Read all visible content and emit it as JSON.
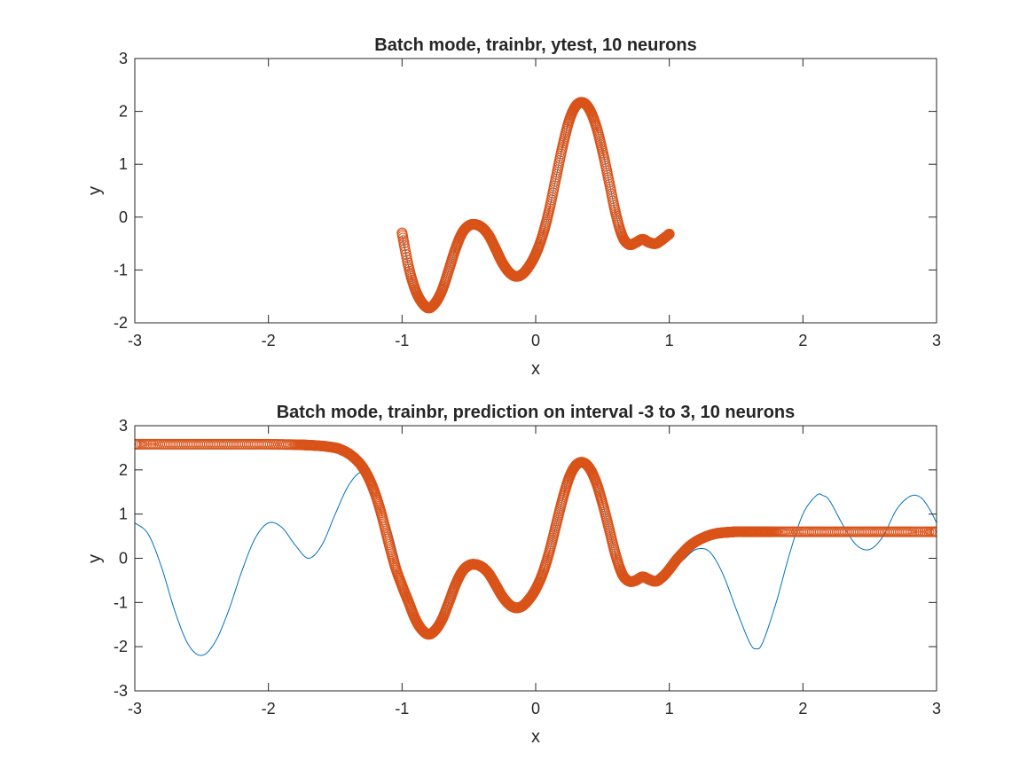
{
  "chart_data": [
    {
      "type": "line",
      "title": "Batch mode, trainbr, ytest, 10 neurons",
      "xlabel": "x",
      "ylabel": "y",
      "xlim": [
        -3,
        3
      ],
      "ylim": [
        -2,
        3
      ],
      "xticks": [
        "-3",
        "-2",
        "-1",
        "0",
        "1",
        "2",
        "3"
      ],
      "yticks": [
        "-2",
        "-1",
        "0",
        "1",
        "2",
        "3"
      ],
      "grid": false,
      "colors": {
        "line": "#0072BD",
        "markers": "#D95319"
      },
      "series": [
        {
          "role": "target",
          "style": "solid line",
          "color": "#0072BD",
          "x": [
            -1.0,
            -0.95,
            -0.9,
            -0.85,
            -0.8,
            -0.75,
            -0.7,
            -0.65,
            -0.6,
            -0.55,
            -0.5,
            -0.45,
            -0.4,
            -0.35,
            -0.3,
            -0.25,
            -0.2,
            -0.15,
            -0.1,
            -0.05,
            0.0,
            0.05,
            0.1,
            0.15,
            0.2,
            0.25,
            0.3,
            0.35,
            0.4,
            0.45,
            0.5,
            0.55,
            0.6,
            0.65,
            0.7,
            0.75,
            0.8,
            0.85,
            0.9,
            0.95,
            1.0
          ],
          "y": [
            -0.35,
            -0.95,
            -1.38,
            -1.62,
            -1.7,
            -1.62,
            -1.38,
            -1.0,
            -0.6,
            -0.3,
            -0.16,
            -0.14,
            -0.2,
            -0.35,
            -0.6,
            -0.86,
            -1.04,
            -1.12,
            -1.08,
            -0.93,
            -0.7,
            -0.36,
            0.12,
            0.72,
            1.32,
            1.82,
            2.1,
            2.17,
            2.05,
            1.74,
            1.25,
            0.66,
            0.06,
            -0.37,
            -0.52,
            -0.48,
            -0.35,
            -0.38,
            -0.46,
            -0.42,
            -0.33
          ]
        },
        {
          "role": "network output",
          "style": "circle markers",
          "color": "#D95319",
          "x": [
            -1.0,
            -0.95,
            -0.9,
            -0.85,
            -0.8,
            -0.75,
            -0.7,
            -0.65,
            -0.6,
            -0.55,
            -0.5,
            -0.45,
            -0.4,
            -0.35,
            -0.3,
            -0.25,
            -0.2,
            -0.15,
            -0.1,
            -0.05,
            0.0,
            0.05,
            0.1,
            0.15,
            0.2,
            0.25,
            0.3,
            0.35,
            0.4,
            0.45,
            0.5,
            0.55,
            0.6,
            0.65,
            0.7,
            0.75,
            0.8,
            0.85,
            0.9,
            0.95,
            1.0
          ],
          "y": [
            -0.3,
            -0.95,
            -1.38,
            -1.62,
            -1.72,
            -1.62,
            -1.38,
            -1.0,
            -0.6,
            -0.3,
            -0.16,
            -0.14,
            -0.2,
            -0.35,
            -0.6,
            -0.86,
            -1.04,
            -1.12,
            -1.08,
            -0.93,
            -0.7,
            -0.36,
            0.12,
            0.72,
            1.32,
            1.82,
            2.1,
            2.17,
            2.05,
            1.74,
            1.25,
            0.66,
            0.06,
            -0.37,
            -0.52,
            -0.48,
            -0.42,
            -0.48,
            -0.5,
            -0.42,
            -0.32
          ]
        }
      ]
    },
    {
      "type": "line",
      "title": "Batch mode, trainbr, prediction on interval -3 to 3, 10 neurons",
      "xlabel": "x",
      "ylabel": "y",
      "xlim": [
        -3,
        3
      ],
      "ylim": [
        -3,
        3
      ],
      "xticks": [
        "-3",
        "-2",
        "-1",
        "0",
        "1",
        "2",
        "3"
      ],
      "yticks": [
        "-3",
        "-2",
        "-1",
        "0",
        "1",
        "2",
        "3"
      ],
      "grid": false,
      "colors": {
        "line": "#0072BD",
        "markers": "#D95319"
      },
      "series": [
        {
          "role": "target",
          "style": "solid line",
          "color": "#0072BD",
          "x": [
            -3.0,
            -2.9,
            -2.8,
            -2.7,
            -2.6,
            -2.5,
            -2.4,
            -2.3,
            -2.2,
            -2.1,
            -2.0,
            -1.9,
            -1.8,
            -1.7,
            -1.6,
            -1.5,
            -1.4,
            -1.3,
            -1.2,
            -1.1,
            -1.0,
            -0.95,
            -0.9,
            -0.85,
            -0.8,
            -0.75,
            -0.7,
            -0.65,
            -0.6,
            -0.55,
            -0.5,
            -0.45,
            -0.4,
            -0.35,
            -0.3,
            -0.25,
            -0.2,
            -0.15,
            -0.1,
            -0.05,
            0.0,
            0.05,
            0.1,
            0.15,
            0.2,
            0.25,
            0.3,
            0.35,
            0.4,
            0.45,
            0.5,
            0.55,
            0.6,
            0.65,
            0.7,
            0.75,
            0.8,
            0.85,
            0.9,
            0.95,
            1.0,
            1.1,
            1.2,
            1.3,
            1.4,
            1.5,
            1.6,
            1.65,
            1.7,
            1.8,
            1.9,
            2.0,
            2.1,
            2.15,
            2.2,
            2.3,
            2.4,
            2.5,
            2.6,
            2.7,
            2.8,
            2.88,
            2.95,
            3.0
          ],
          "y": [
            0.8,
            0.55,
            -0.2,
            -1.2,
            -1.95,
            -2.2,
            -1.9,
            -1.2,
            -0.3,
            0.45,
            0.8,
            0.7,
            0.3,
            0.0,
            0.3,
            1.0,
            1.65,
            1.95,
            1.7,
            0.8,
            -0.35,
            -0.95,
            -1.38,
            -1.62,
            -1.7,
            -1.62,
            -1.38,
            -1.0,
            -0.6,
            -0.3,
            -0.16,
            -0.14,
            -0.2,
            -0.35,
            -0.6,
            -0.86,
            -1.04,
            -1.12,
            -1.08,
            -0.93,
            -0.7,
            -0.36,
            0.12,
            0.72,
            1.32,
            1.82,
            2.1,
            2.17,
            2.05,
            1.74,
            1.25,
            0.66,
            0.06,
            -0.37,
            -0.52,
            -0.48,
            -0.35,
            -0.38,
            -0.46,
            -0.42,
            -0.33,
            -0.05,
            0.2,
            0.15,
            -0.35,
            -1.15,
            -1.9,
            -2.05,
            -1.9,
            -1.0,
            0.1,
            1.0,
            1.42,
            1.42,
            1.3,
            0.75,
            0.3,
            0.2,
            0.5,
            1.1,
            1.4,
            1.38,
            1.1,
            0.8
          ]
        },
        {
          "role": "network output",
          "style": "circle markers",
          "color": "#D95319",
          "x": [
            -3.0,
            -2.8,
            -2.6,
            -2.4,
            -2.2,
            -2.0,
            -1.8,
            -1.7,
            -1.6,
            -1.5,
            -1.45,
            -1.4,
            -1.35,
            -1.3,
            -1.25,
            -1.2,
            -1.15,
            -1.1,
            -1.05,
            -1.0,
            -0.95,
            -0.9,
            -0.85,
            -0.8,
            -0.75,
            -0.7,
            -0.65,
            -0.6,
            -0.55,
            -0.5,
            -0.45,
            -0.4,
            -0.35,
            -0.3,
            -0.25,
            -0.2,
            -0.15,
            -0.1,
            -0.05,
            0.0,
            0.05,
            0.1,
            0.15,
            0.2,
            0.25,
            0.3,
            0.35,
            0.4,
            0.45,
            0.5,
            0.55,
            0.6,
            0.65,
            0.7,
            0.75,
            0.8,
            0.85,
            0.9,
            0.95,
            1.0,
            1.05,
            1.1,
            1.15,
            1.2,
            1.25,
            1.3,
            1.35,
            1.4,
            1.45,
            1.5,
            1.6,
            1.7,
            1.8,
            2.0,
            2.2,
            2.4,
            2.6,
            2.8,
            3.0
          ],
          "y": [
            2.58,
            2.58,
            2.58,
            2.58,
            2.58,
            2.58,
            2.57,
            2.56,
            2.54,
            2.5,
            2.45,
            2.37,
            2.25,
            2.08,
            1.82,
            1.45,
            0.95,
            0.35,
            -0.2,
            -0.62,
            -1.0,
            -1.38,
            -1.62,
            -1.72,
            -1.62,
            -1.38,
            -1.0,
            -0.6,
            -0.3,
            -0.16,
            -0.14,
            -0.2,
            -0.35,
            -0.6,
            -0.86,
            -1.04,
            -1.12,
            -1.08,
            -0.93,
            -0.7,
            -0.36,
            0.12,
            0.72,
            1.32,
            1.82,
            2.1,
            2.17,
            2.05,
            1.74,
            1.25,
            0.66,
            0.06,
            -0.37,
            -0.52,
            -0.5,
            -0.42,
            -0.48,
            -0.52,
            -0.42,
            -0.25,
            -0.05,
            0.12,
            0.27,
            0.38,
            0.46,
            0.52,
            0.56,
            0.58,
            0.59,
            0.6,
            0.6,
            0.6,
            0.6,
            0.6,
            0.6,
            0.6,
            0.6,
            0.6,
            0.6
          ]
        }
      ]
    }
  ]
}
